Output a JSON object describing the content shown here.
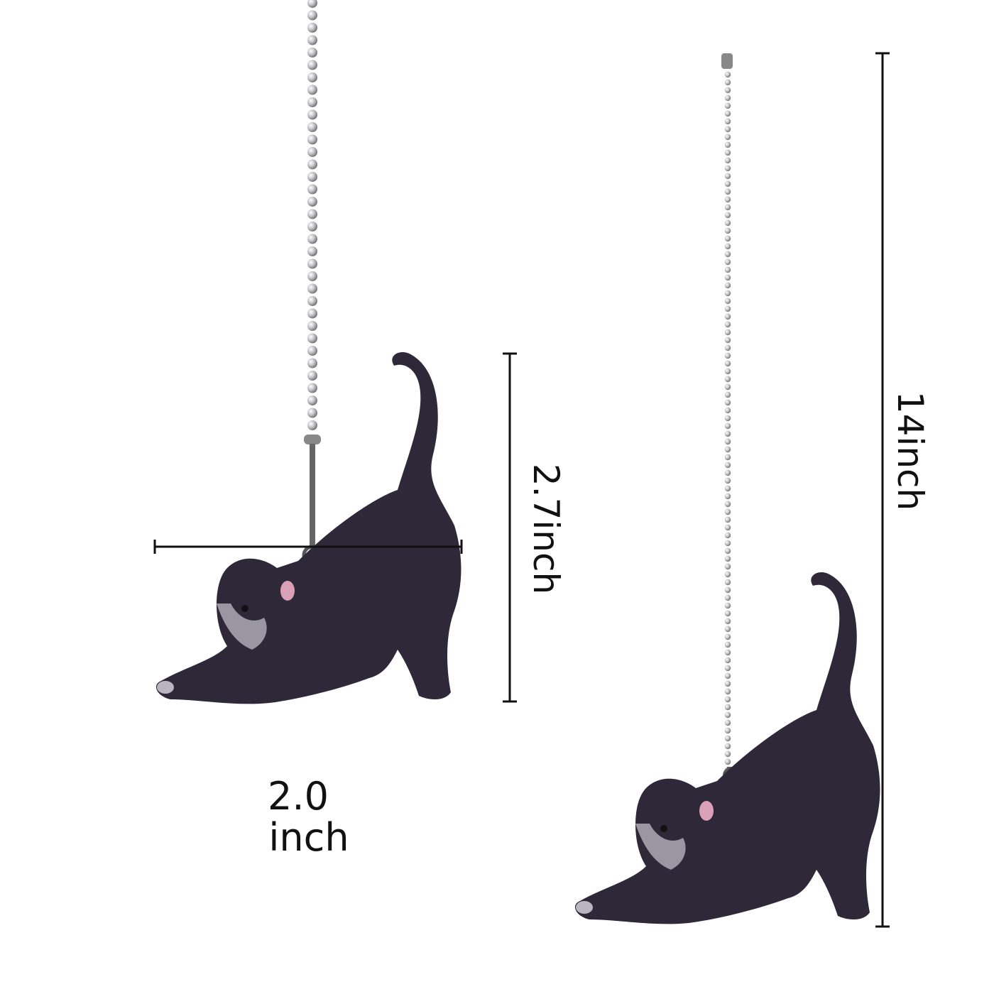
{
  "product": {
    "colors": {
      "cat_body": "#2e2838",
      "cat_face": "#9a97a2",
      "chain": "#c8c8cc",
      "dimension_line": "#111111"
    },
    "dimensions": {
      "figure_height": "2.7inch",
      "figure_width_value": "2.0",
      "figure_width_unit": "inch",
      "total_length": "14inch"
    }
  }
}
